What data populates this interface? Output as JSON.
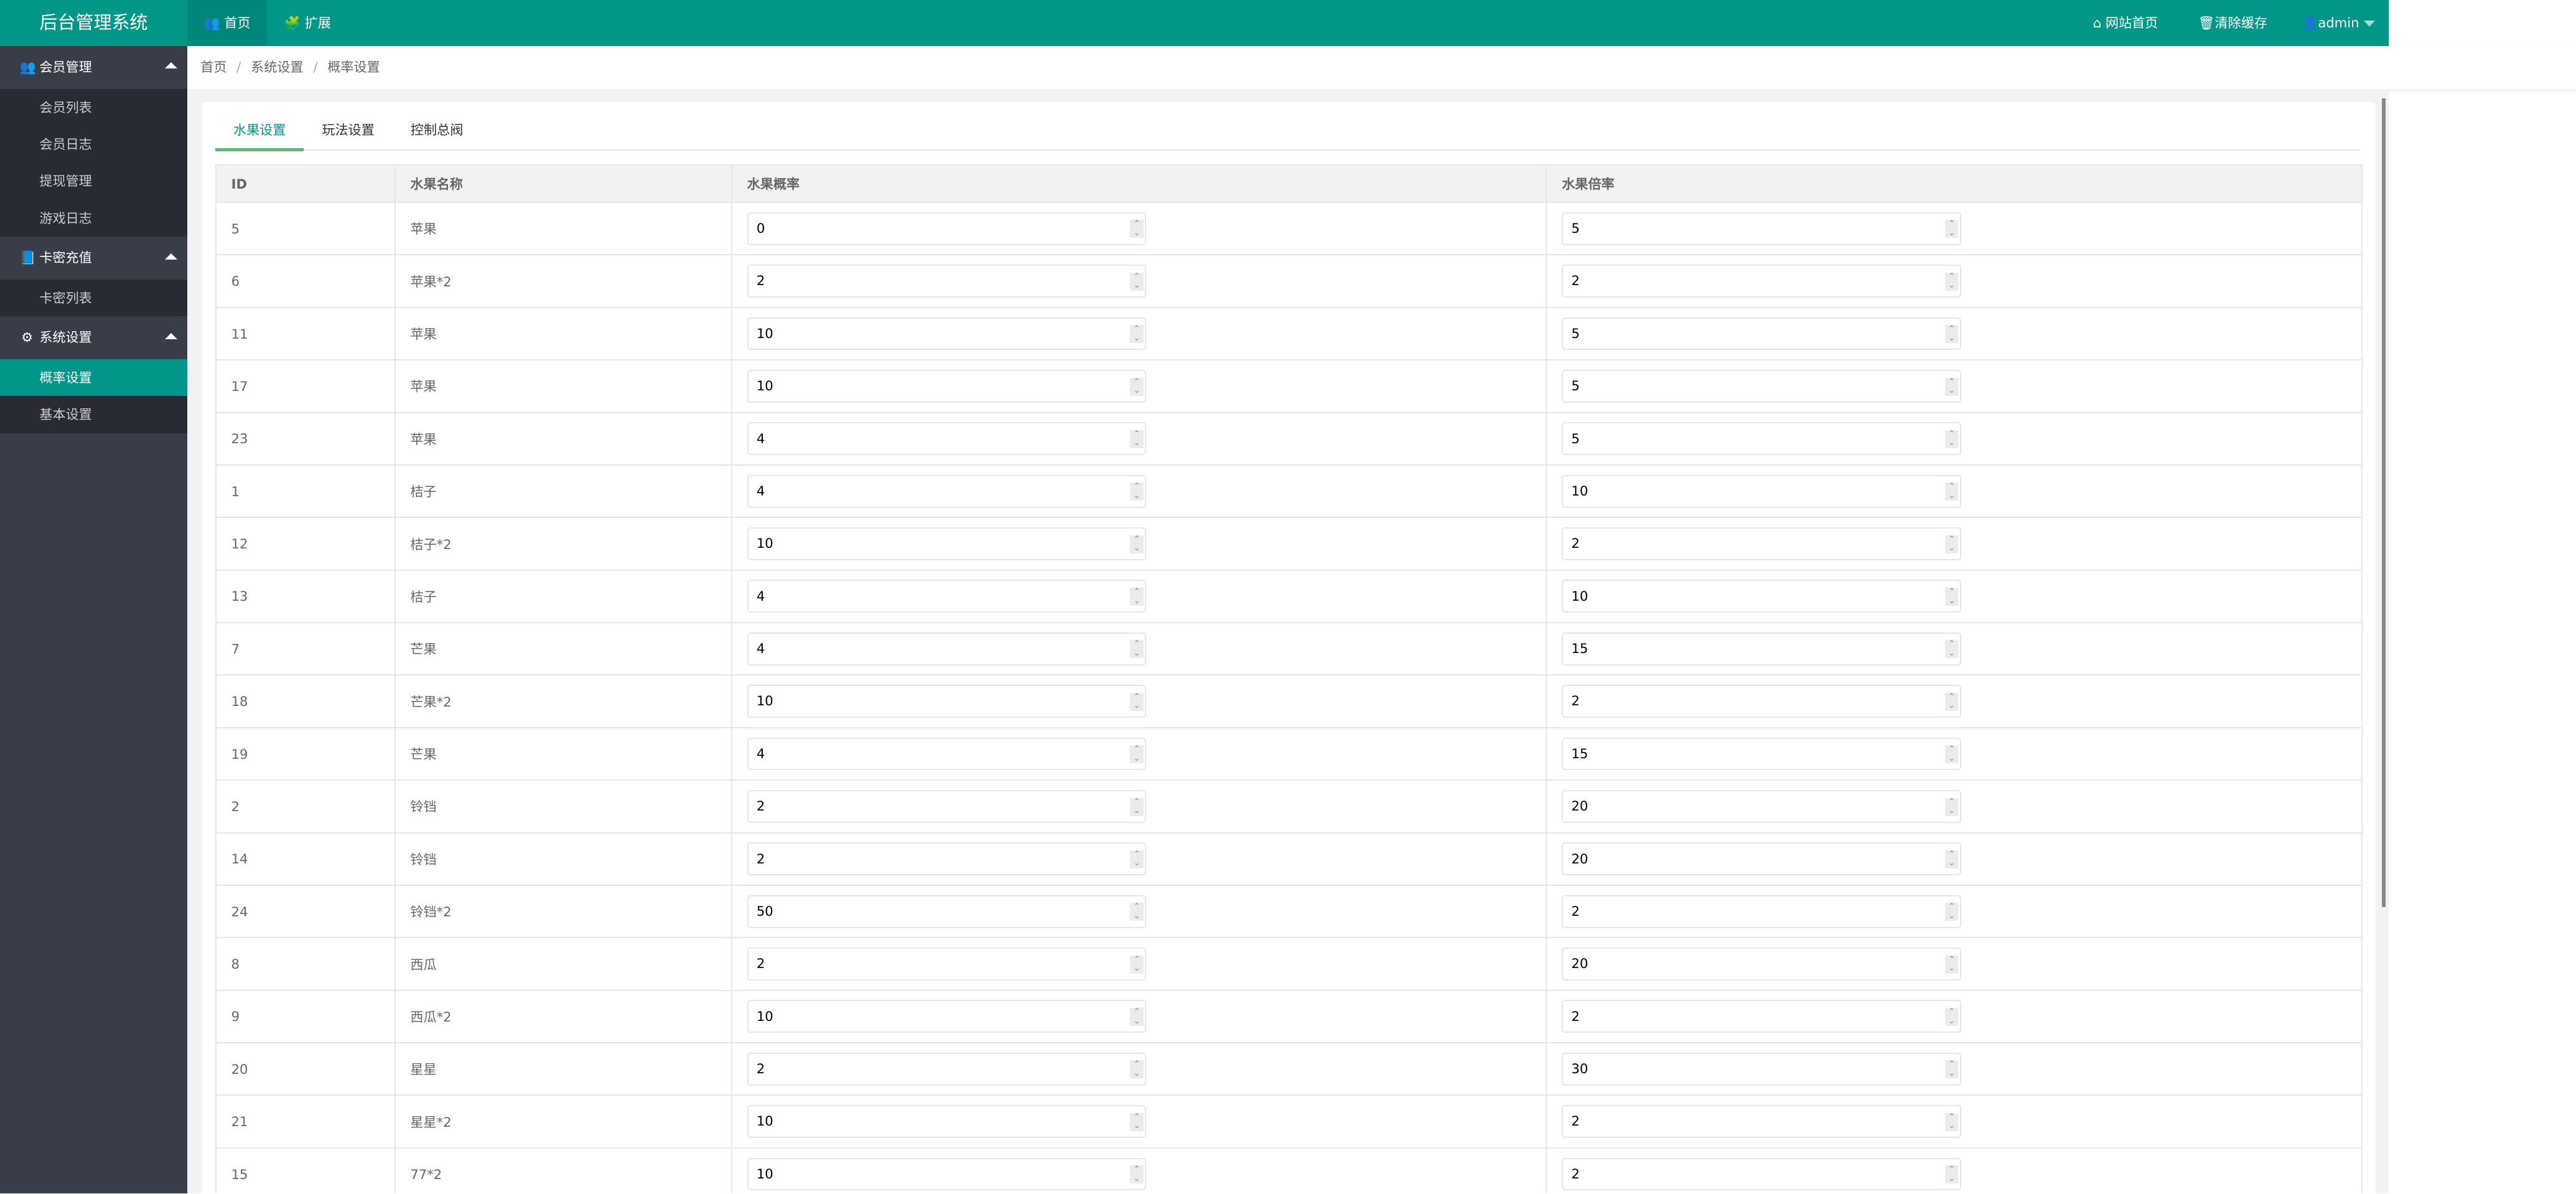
{
  "header": {
    "logo": "后台管理系统",
    "nav": [
      {
        "label": "首页",
        "icon": "users-icon"
      },
      {
        "label": "扩展",
        "icon": "puzzle-icon"
      }
    ],
    "right": {
      "site_home": "网站首页",
      "clear_cache": "清除缓存",
      "user": "admin"
    }
  },
  "sidebar": {
    "groups": [
      {
        "label": "会员管理",
        "icon": "users-icon",
        "items": [
          "会员列表",
          "会员日志",
          "提现管理",
          "游戏日志"
        ]
      },
      {
        "label": "卡密充值",
        "icon": "book-icon",
        "items": [
          "卡密列表"
        ]
      },
      {
        "label": "系统设置",
        "icon": "gear-icon",
        "items": [
          "概率设置",
          "基本设置"
        ]
      }
    ],
    "active": "概率设置"
  },
  "breadcrumb": [
    "首页",
    "系统设置",
    "概率设置"
  ],
  "tabs": [
    "水果设置",
    "玩法设置",
    "控制总阀"
  ],
  "table": {
    "headers": [
      "ID",
      "水果名称",
      "水果概率",
      "水果倍率"
    ],
    "rows": [
      [
        "5",
        "苹果",
        "0",
        "5"
      ],
      [
        "6",
        "苹果*2",
        "2",
        "2"
      ],
      [
        "11",
        "苹果",
        "10",
        "5"
      ],
      [
        "17",
        "苹果",
        "10",
        "5"
      ],
      [
        "23",
        "苹果",
        "4",
        "5"
      ],
      [
        "1",
        "桔子",
        "4",
        "10"
      ],
      [
        "12",
        "桔子*2",
        "10",
        "2"
      ],
      [
        "13",
        "桔子",
        "4",
        "10"
      ],
      [
        "7",
        "芒果",
        "4",
        "15"
      ],
      [
        "18",
        "芒果*2",
        "10",
        "2"
      ],
      [
        "19",
        "芒果",
        "4",
        "15"
      ],
      [
        "2",
        "铃铛",
        "2",
        "20"
      ],
      [
        "14",
        "铃铛",
        "2",
        "20"
      ],
      [
        "24",
        "铃铛*2",
        "50",
        "2"
      ],
      [
        "8",
        "西瓜",
        "2",
        "20"
      ],
      [
        "9",
        "西瓜*2",
        "10",
        "2"
      ],
      [
        "20",
        "星星",
        "2",
        "30"
      ],
      [
        "21",
        "星星*2",
        "10",
        "2"
      ],
      [
        "15",
        "77*2",
        "10",
        "2"
      ]
    ]
  },
  "colors": {
    "primary": "#009688",
    "sidebar": "#393D49",
    "tab_underline": "#5FB878"
  }
}
